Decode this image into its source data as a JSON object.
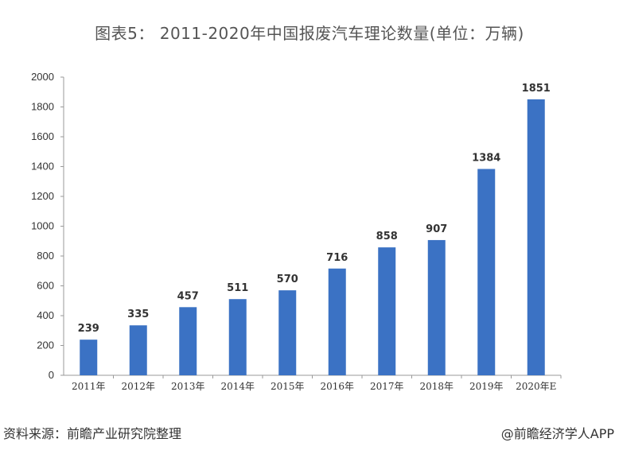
{
  "title": "图表5： 2011-2020年中国报废汽车理论数量(单位：万辆)",
  "source": "资料来源：前瞻产业研究院整理",
  "credit": "@前瞻经济学人APP",
  "colors": {
    "bar": "#3b72c4",
    "axis": "#999999"
  },
  "chart_data": {
    "type": "bar",
    "title": "图表5： 2011-2020年中国报废汽车理论数量(单位：万辆)",
    "categories": [
      "2011年",
      "2012年",
      "2013年",
      "2014年",
      "2015年",
      "2016年",
      "2017年",
      "2018年",
      "2019年",
      "2020年E"
    ],
    "values": [
      239,
      335,
      457,
      511,
      570,
      716,
      858,
      907,
      1384,
      1851
    ],
    "ylim": [
      0,
      2000
    ],
    "yticks": [
      0,
      200,
      400,
      600,
      800,
      1000,
      1200,
      1400,
      1600,
      1800,
      2000
    ],
    "grid": false,
    "data_labels": true
  }
}
